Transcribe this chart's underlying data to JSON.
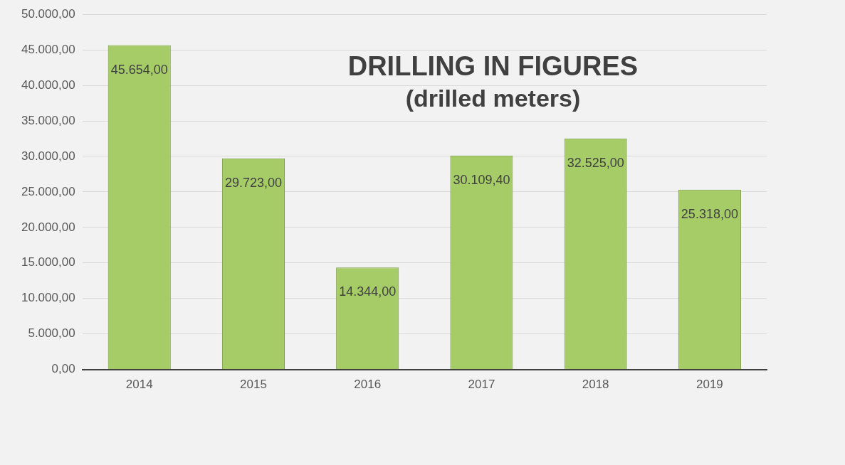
{
  "chart_data": {
    "type": "bar",
    "title": "DRILLING IN FIGURES",
    "subtitle": "(drilled meters)",
    "categories": [
      "2014",
      "2015",
      "2016",
      "2017",
      "2018",
      "2019"
    ],
    "values": [
      45654,
      29723,
      14344,
      30109.4,
      32525,
      25318
    ],
    "value_labels": [
      "45.654,00",
      "29.723,00",
      "14.344,00",
      "30.109,40",
      "32.525,00",
      "25.318,00"
    ],
    "color": "#a6cc68",
    "ylim": [
      0,
      50000
    ],
    "yticks": [
      {
        "value": 0,
        "label": "0,00"
      },
      {
        "value": 5000,
        "label": "5.000,00"
      },
      {
        "value": 10000,
        "label": "10.000,00"
      },
      {
        "value": 15000,
        "label": "15.000,00"
      },
      {
        "value": 20000,
        "label": "20.000,00"
      },
      {
        "value": 25000,
        "label": "25.000,00"
      },
      {
        "value": 30000,
        "label": "30.000,00"
      },
      {
        "value": 35000,
        "label": "35.000,00"
      },
      {
        "value": 40000,
        "label": "40.000,00"
      },
      {
        "value": 45000,
        "label": "45.000,00"
      },
      {
        "value": 50000,
        "label": "50.000,00"
      }
    ],
    "grid": "y",
    "legend": false
  }
}
